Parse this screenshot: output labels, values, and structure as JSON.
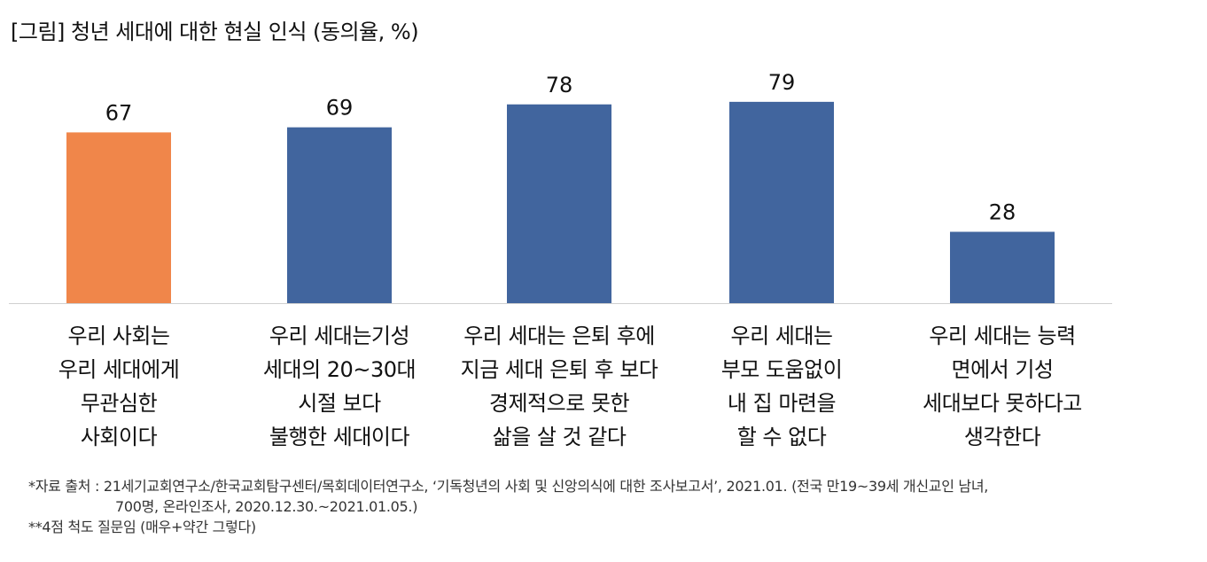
{
  "chart_data": {
    "type": "bar",
    "title": "[그림] 청년 세대에 대한 현실 인식 (동의율, %)",
    "categories": [
      [
        "우리 사회는",
        "우리 세대에게",
        "무관심한",
        "사회이다"
      ],
      [
        "우리 세대는기성",
        "세대의 20~30대",
        "시절 보다",
        "불행한 세대이다"
      ],
      [
        "우리 세대는 은퇴 후에",
        "지금 세대 은퇴 후 보다",
        "경제적으로 못한",
        "삶을 살 것 같다"
      ],
      [
        "우리 세대는",
        "부모 도움없이",
        "내 집 마련을",
        "할 수 없다"
      ],
      [
        "우리 세대는 능력",
        "면에서 기성",
        "세대보다 못하다고",
        "생각한다"
      ]
    ],
    "values": [
      67,
      69,
      78,
      79,
      28
    ],
    "data_labels": [
      "67",
      "69",
      "78",
      "79",
      "28"
    ],
    "colors": [
      "#F0864A",
      "#41659E",
      "#41659E",
      "#41659E",
      "#41659E"
    ],
    "ylim": [
      0,
      100
    ],
    "grid": false,
    "legend": "none"
  },
  "notes": {
    "source_line1": "*자료 출처 : 21세기교회연구소/한국교회탐구센터/목회데이터연구소, ‘기독청년의 사회 및 신앙의식에 대한 조사보고서’, 2021.01. (전국 만19~39세 개신교인 남녀,",
    "source_line2": "700명, 온라인조사, 2020.12.30.~2021.01.05.)",
    "scale_note": "**4점 척도 질문임 (매우+약간 그렇다)"
  }
}
